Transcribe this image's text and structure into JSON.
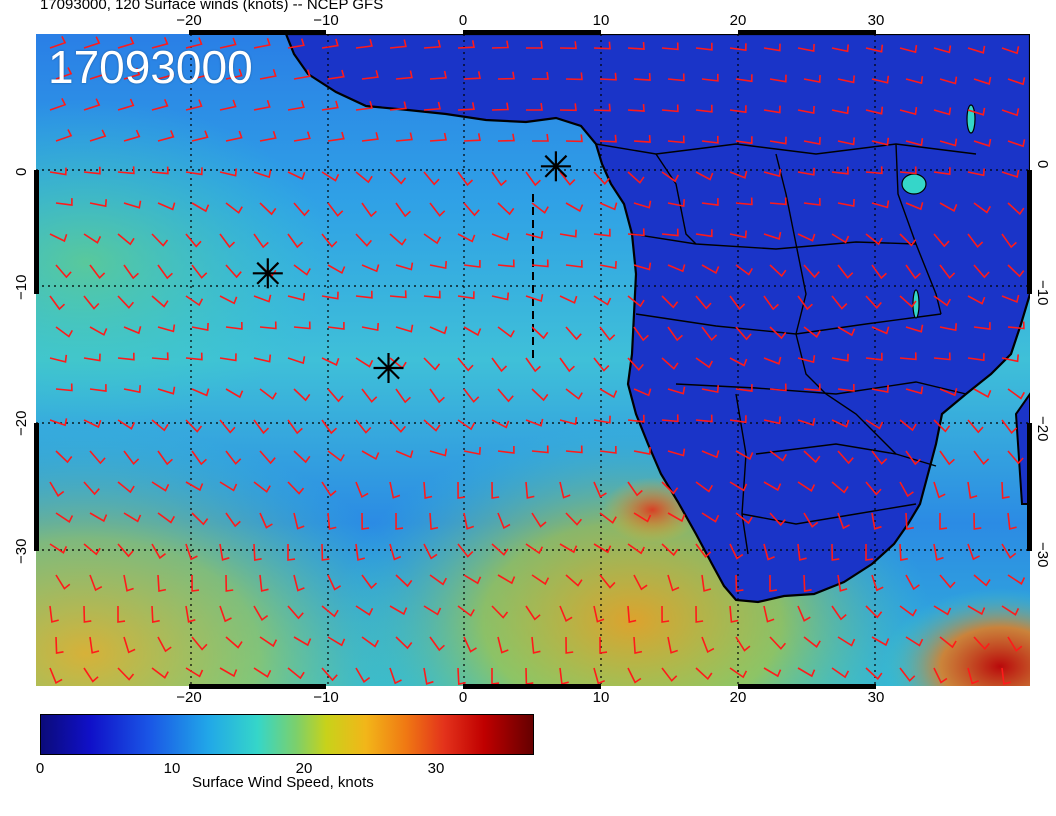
{
  "title": "17093000, 120 Surface winds (knots) -- NCEP GFS",
  "stamp": "17093000",
  "axes": {
    "lon_labels": [
      "−20",
      "−10",
      "0",
      "10",
      "20",
      "30"
    ],
    "lat_labels": [
      "0",
      "−10",
      "−20",
      "−30"
    ]
  },
  "colorbar": {
    "label": "Surface Wind Speed, knots",
    "ticks": [
      "0",
      "10",
      "20",
      "30"
    ],
    "min": 0,
    "max": 36,
    "colors": [
      "#0b0b7a",
      "#1010c8",
      "#1a56e6",
      "#21a7e8",
      "#35d6c9",
      "#7dd06a",
      "#c8d21a",
      "#f2b619",
      "#f07a13",
      "#e3321b",
      "#c00000",
      "#650000"
    ]
  },
  "markers": [
    {
      "name": "marker-star",
      "lon": 6.7,
      "lat": 0.3
    },
    {
      "name": "marker-star",
      "lon": -14.3,
      "lat": -8.4
    },
    {
      "name": "marker-star",
      "lon": -5.5,
      "lat": -16.1
    }
  ],
  "colors": {
    "barb": "#ff1a1a",
    "ocean": "#21a7e8",
    "land": "#1a2fc8",
    "coast": "#000000"
  }
}
